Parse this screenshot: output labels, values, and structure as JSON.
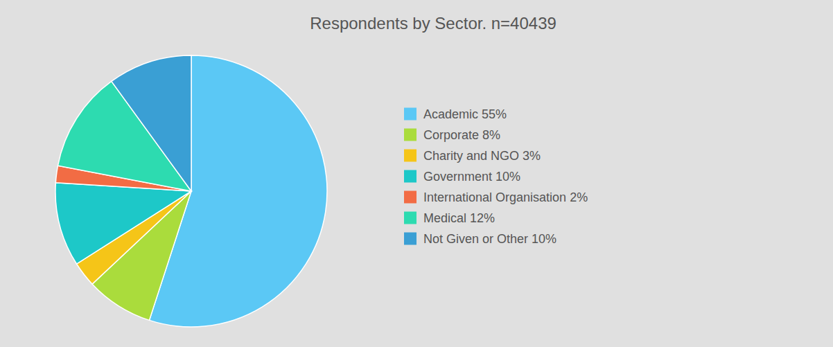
{
  "chart_data": {
    "type": "pie",
    "title": "Respondents by Sector. n=40439",
    "categories": [
      "Academic 55%",
      "Corporate 8%",
      "Charity and NGO 3%",
      "Government 10%",
      "International Organisation 2%",
      "Medical 12%",
      "Not Given or Other 10%"
    ],
    "values": [
      55,
      8,
      3,
      10,
      2,
      12,
      10
    ],
    "colors": [
      "#5BC8F5",
      "#AADC3C",
      "#F5C518",
      "#1DC8C8",
      "#F26C44",
      "#2DDBB0",
      "#3A9FD4"
    ],
    "legend": "right"
  }
}
